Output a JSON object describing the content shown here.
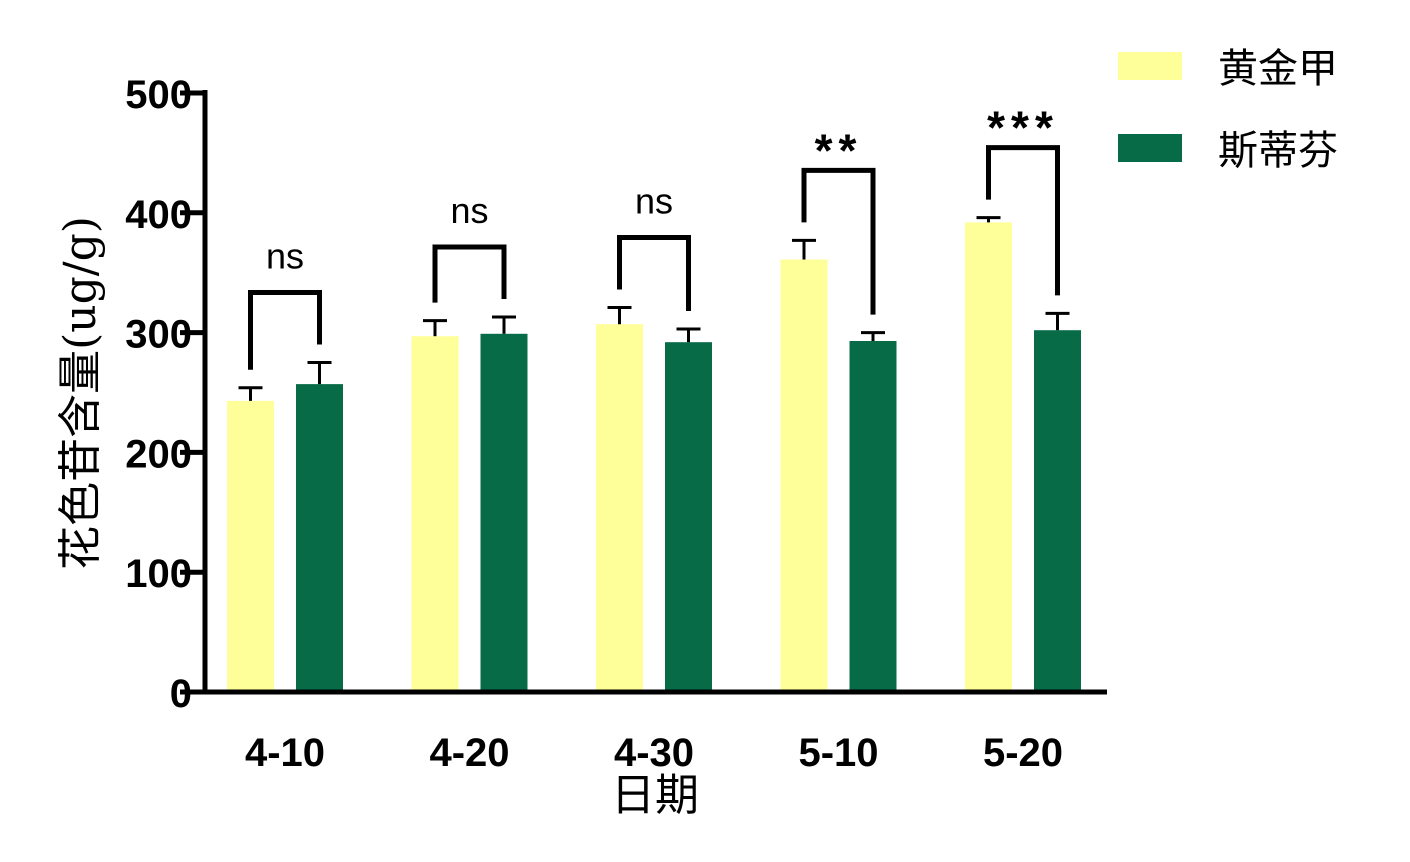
{
  "chart_data": {
    "type": "bar",
    "title": "",
    "xlabel": "日期",
    "ylabel": "花色苷含量(ug/g)",
    "ylim": [
      0,
      500
    ],
    "yticks": [
      0,
      100,
      200,
      300,
      400,
      500
    ],
    "categories": [
      "4-10",
      "4-20",
      "4-30",
      "5-10",
      "5-20"
    ],
    "series": [
      {
        "name": "黄金甲",
        "color": "#ffff99",
        "values": [
          243,
          297,
          307,
          361,
          392
        ],
        "errors": [
          11,
          13,
          14,
          16,
          4
        ]
      },
      {
        "name": "斯蒂芬",
        "color": "#086b48",
        "values": [
          257,
          299,
          292,
          293,
          302
        ],
        "errors": [
          18,
          14,
          11,
          7,
          14
        ]
      }
    ],
    "significance": [
      "ns",
      "ns",
      "ns",
      "**",
      "***"
    ],
    "legend_position": "top-right",
    "grid": false
  }
}
